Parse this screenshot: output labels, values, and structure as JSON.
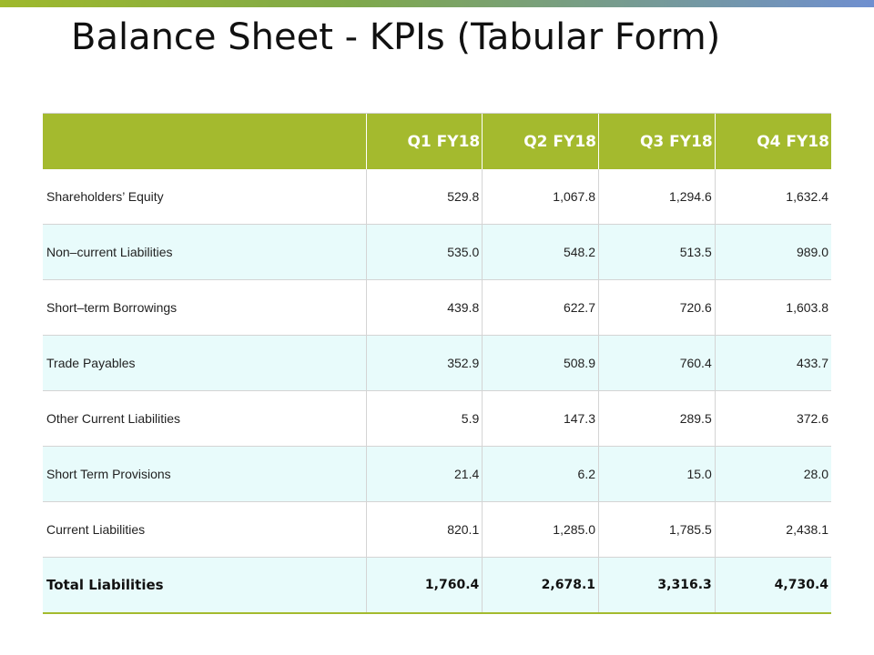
{
  "slide": {
    "title": "Balance Sheet - KPIs (Tabular Form)"
  },
  "table": {
    "headers": [
      "",
      "Q1 FY18",
      "Q2 FY18",
      "Q3 FY18",
      "Q4 FY18"
    ],
    "rows": [
      {
        "label": "Shareholders’ Equity",
        "values": [
          "529.8",
          "1,067.8",
          "1,294.6",
          "1,632.4"
        ]
      },
      {
        "label": "Non–current Liabilities",
        "values": [
          "535.0",
          "548.2",
          "513.5",
          "989.0"
        ]
      },
      {
        "label": "Short–term Borrowings",
        "values": [
          "439.8",
          "622.7",
          "720.6",
          "1,603.8"
        ]
      },
      {
        "label": "Trade Payables",
        "values": [
          "352.9",
          "508.9",
          "760.4",
          "433.7"
        ]
      },
      {
        "label": "Other Current Liabilities",
        "values": [
          "5.9",
          "147.3",
          "289.5",
          "372.6"
        ]
      },
      {
        "label": "Short Term Provisions",
        "values": [
          "21.4",
          "6.2",
          "15.0",
          "28.0"
        ]
      },
      {
        "label": "Current Liabilities",
        "values": [
          "820.1",
          "1,285.0",
          "1,785.5",
          "2,438.1"
        ]
      },
      {
        "label": "Total Liabilities",
        "values": [
          "1,760.4",
          "2,678.1",
          "3,316.3",
          "4,730.4"
        ]
      }
    ]
  },
  "colors": {
    "header_bg": "#a4ba2e",
    "row_alt_bg": "#e8fbfb"
  }
}
